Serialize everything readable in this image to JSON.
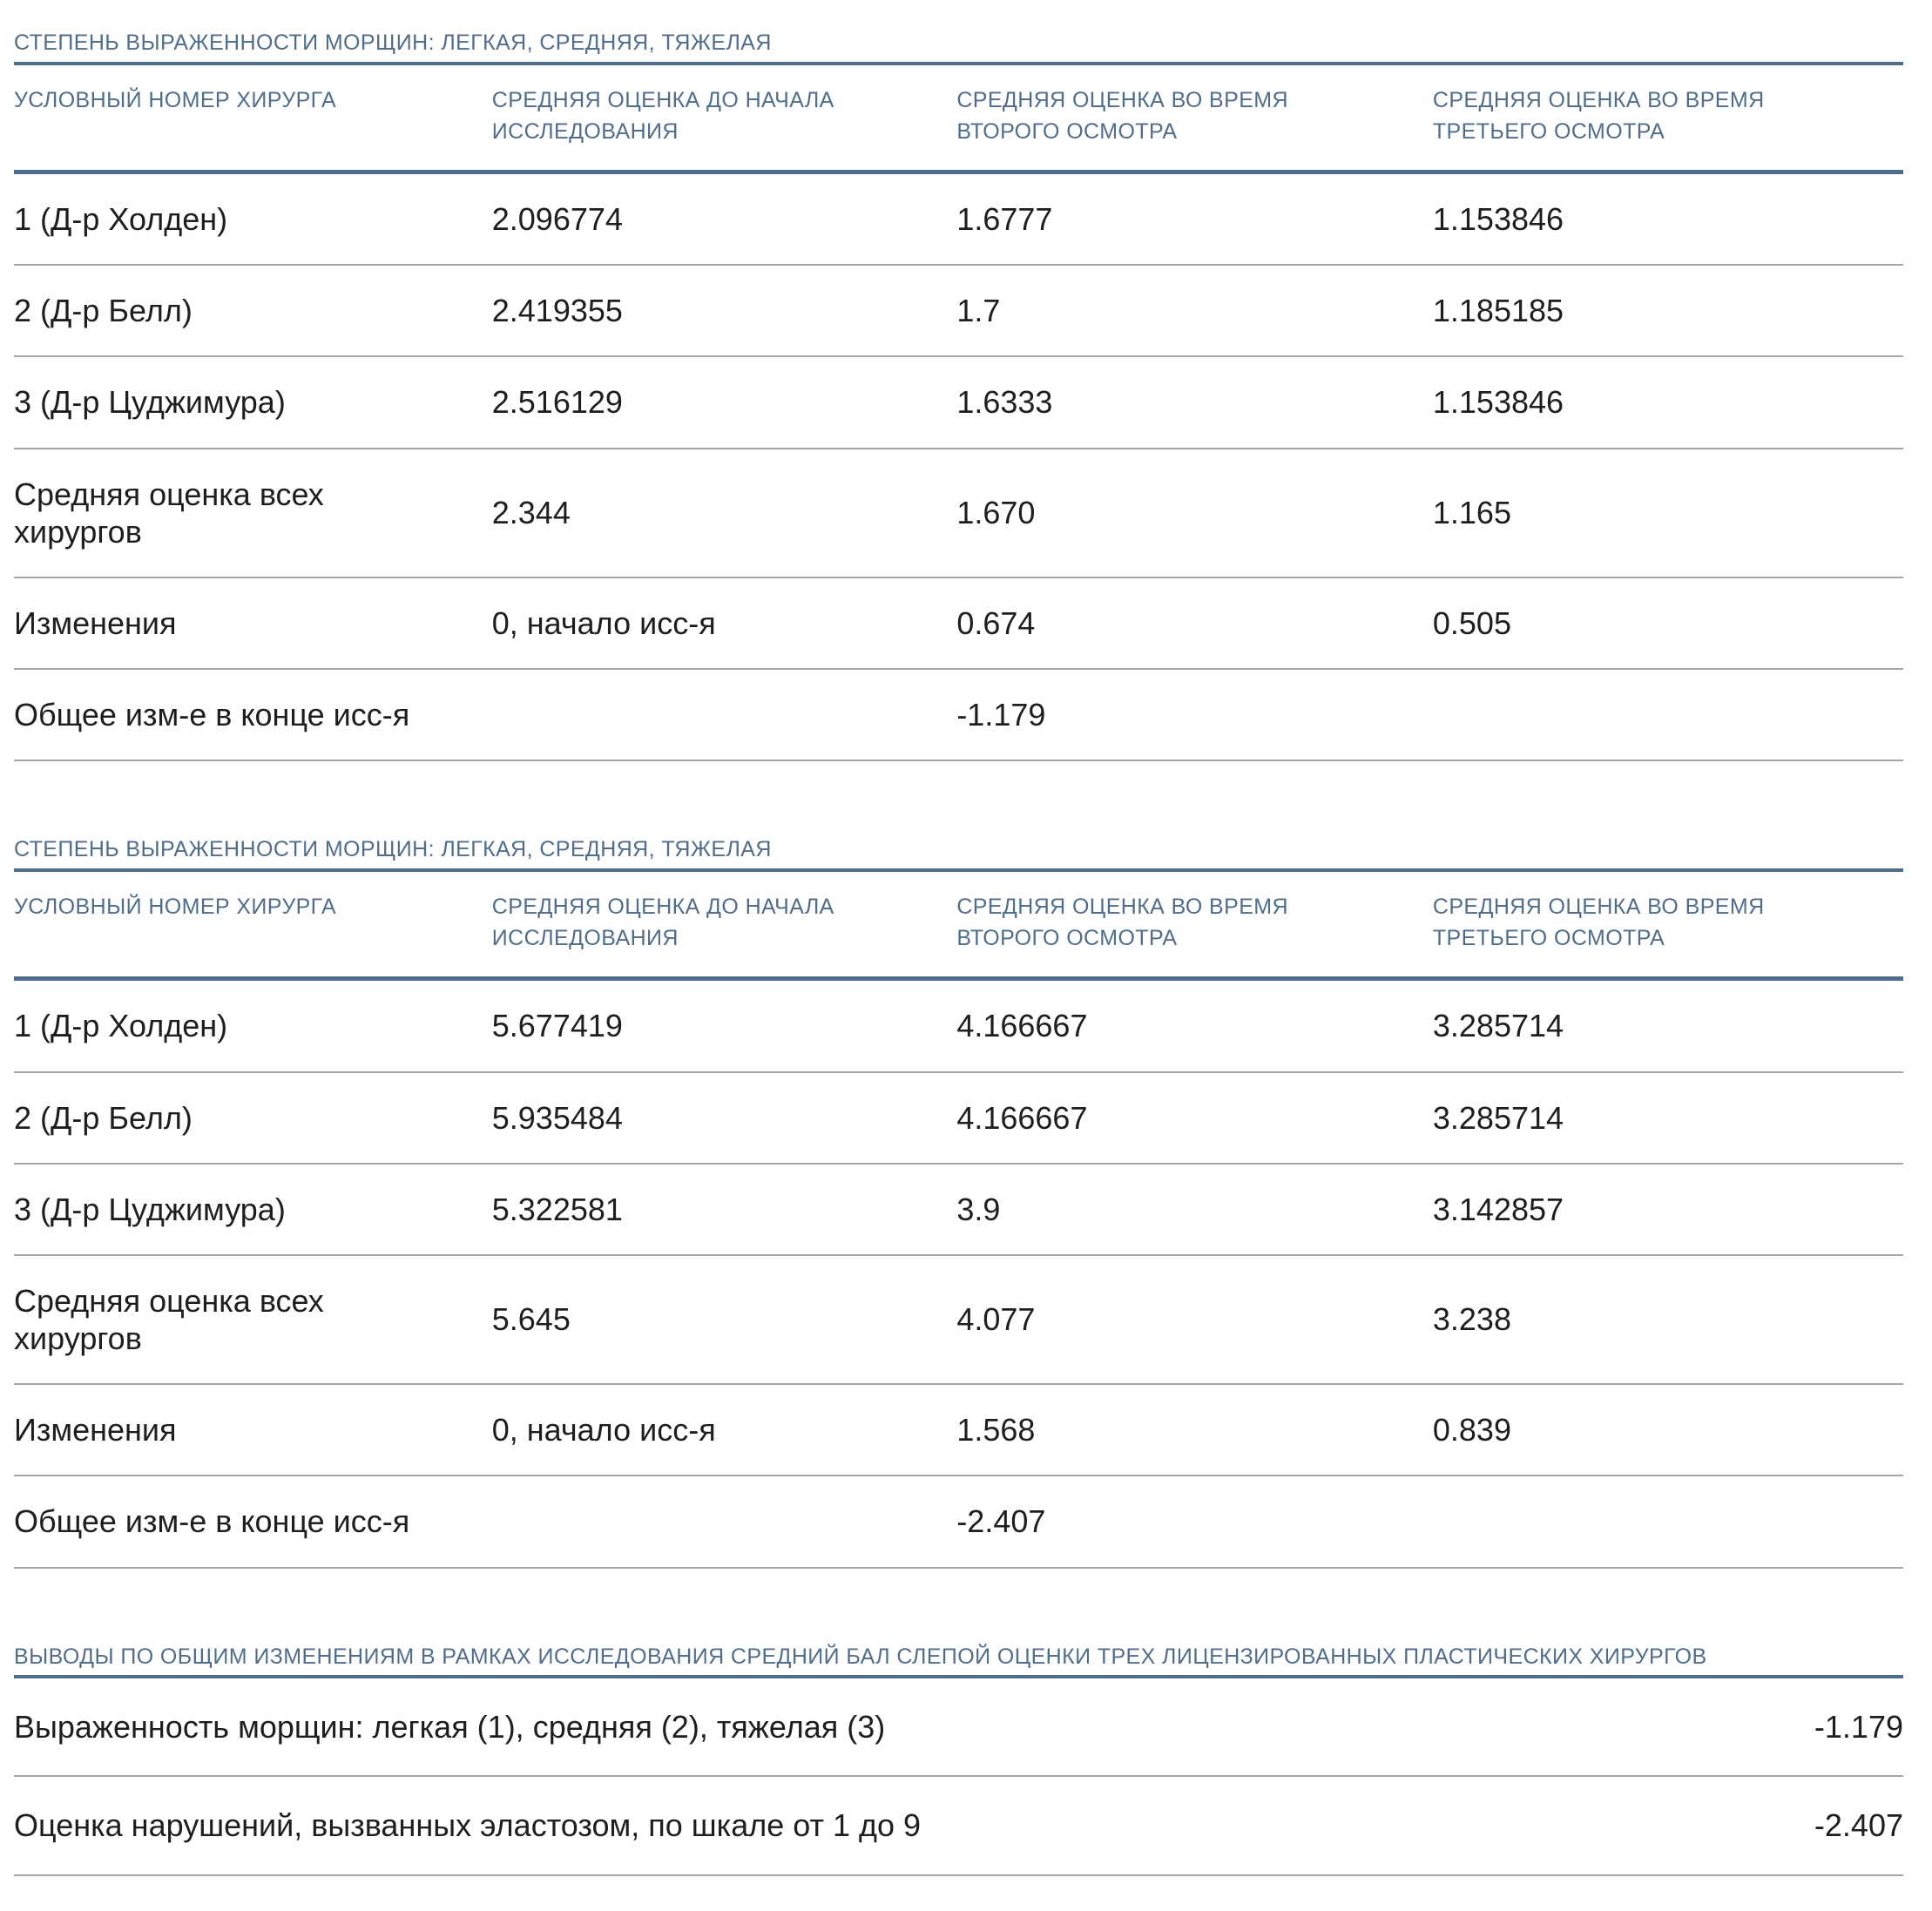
{
  "accent_color": "#506e8c",
  "text_color": "#1d1e20",
  "divider_color": "#a6a6a6",
  "tables": [
    {
      "caption": "СТЕПЕНЬ ВЫРАЖЕННОСТИ МОРЩИН: ЛЕГКАЯ, СРЕДНЯЯ, ТЯЖЕЛАЯ",
      "columns": [
        "УСЛОВНЫЙ НОМЕР ХИРУРГА",
        "СРЕДНЯЯ ОЦЕНКА ДО НАЧАЛА\nИССЛЕДОВАНИЯ",
        "СРЕДНЯЯ ОЦЕНКА ВО ВРЕМЯ\nВТОРОГО ОСМОТРА",
        "СРЕДНЯЯ ОЦЕНКА ВО ВРЕМЯ\nТРЕТЬЕГО ОСМОТРА"
      ],
      "rows": [
        [
          "1 (Д-р Холден)",
          "2.096774",
          "1.6777",
          "1.153846"
        ],
        [
          "2 (Д-р Белл)",
          "2.419355",
          "1.7",
          "1.185185"
        ],
        [
          "3 (Д-р Цуджимура)",
          "2.516129",
          "1.6333",
          "1.153846"
        ],
        [
          "Средняя оценка всех хирургов",
          "2.344",
          "1.670",
          "1.165"
        ],
        [
          "Изменения",
          "0, начало исс-я",
          "0.674",
          "0.505"
        ],
        [
          "Общее изм-е в конце исс-я",
          "",
          "-1.179",
          ""
        ]
      ]
    },
    {
      "caption": "СТЕПЕНЬ ВЫРАЖЕННОСТИ МОРЩИН: ЛЕГКАЯ, СРЕДНЯЯ, ТЯЖЕЛАЯ",
      "columns": [
        "УСЛОВНЫЙ НОМЕР ХИРУРГА",
        "СРЕДНЯЯ ОЦЕНКА ДО НАЧАЛА\nИССЛЕДОВАНИЯ",
        "СРЕДНЯЯ ОЦЕНКА ВО ВРЕМЯ\nВТОРОГО ОСМОТРА",
        "СРЕДНЯЯ ОЦЕНКА ВО ВРЕМЯ\nТРЕТЬЕГО ОСМОТРА"
      ],
      "rows": [
        [
          "1 (Д-р Холден)",
          "5.677419",
          "4.166667",
          "3.285714"
        ],
        [
          "2 (Д-р Белл)",
          "5.935484",
          "4.166667",
          "3.285714"
        ],
        [
          "3 (Д-р Цуджимура)",
          "5.322581",
          "3.9",
          "3.142857"
        ],
        [
          "Средняя оценка всех хирургов",
          "5.645",
          "4.077",
          "3.238"
        ],
        [
          "Изменения",
          "0, начало исс-я",
          "1.568",
          "0.839"
        ],
        [
          "Общее изм-е в конце исс-я",
          "",
          "-2.407",
          ""
        ]
      ]
    }
  ],
  "summary": {
    "caption": "ВЫВОДЫ ПО ОБЩИМ ИЗМЕНЕНИЯМ В РАМКАХ ИССЛЕДОВАНИЯ СРЕДНИЙ БАЛ СЛЕПОЙ ОЦЕНКИ ТРЕХ ЛИЦЕНЗИРОВАННЫХ ПЛАСТИЧЕСКИХ ХИРУРГОВ",
    "rows": [
      {
        "label": "Выраженность морщин: легкая (1), средняя (2), тяжелая (3)",
        "value": "-1.179"
      },
      {
        "label": "Оценка нарушений, вызванных эластозом, по шкале от 1 до 9",
        "value": "-2.407"
      }
    ]
  }
}
